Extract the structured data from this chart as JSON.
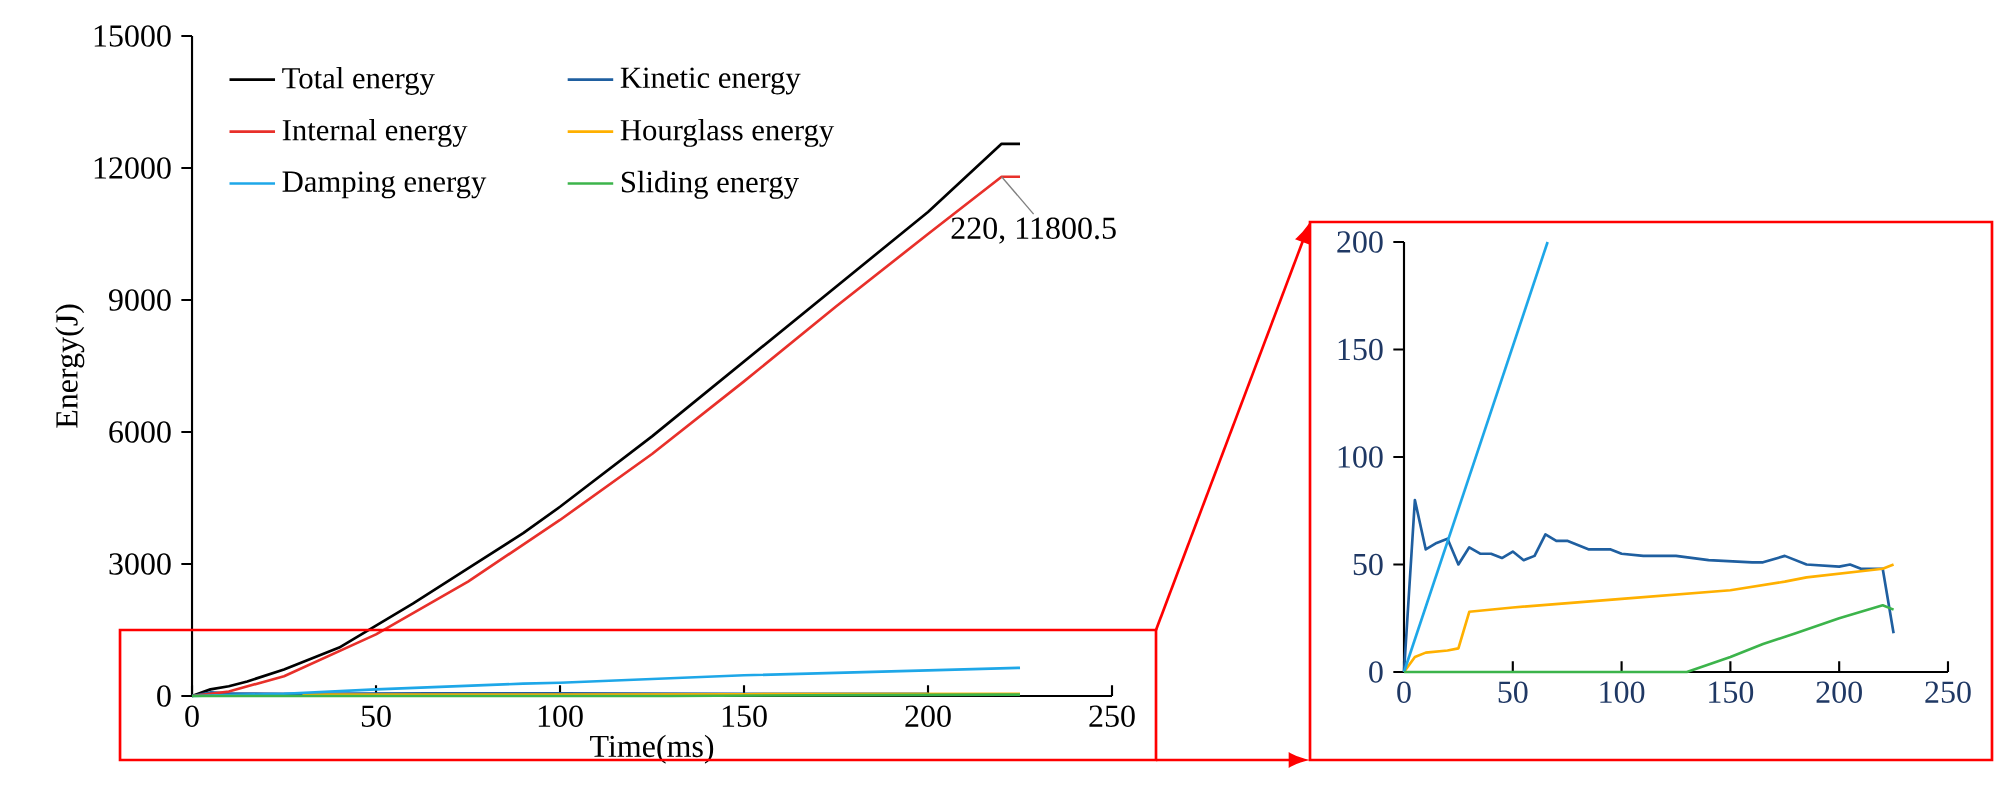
{
  "chart_data": [
    {
      "type": "line",
      "xlabel": "Time(ms)",
      "ylabel": "Energy(J)",
      "xlim": [
        0,
        250
      ],
      "ylim": [
        0,
        15000
      ],
      "xticks": [
        0,
        50,
        100,
        150,
        200,
        250
      ],
      "yticks": [
        0,
        3000,
        6000,
        9000,
        12000,
        15000
      ],
      "legend": "top left",
      "annotations": [
        {
          "text": "220, 11800.5",
          "x": 220,
          "y": 11800.5
        }
      ],
      "series": [
        {
          "name": "Total energy",
          "color": "#000000",
          "x": [
            0,
            5,
            10,
            15,
            25,
            40,
            50,
            60,
            75,
            90,
            100,
            125,
            150,
            175,
            200,
            220,
            225
          ],
          "values": [
            0,
            150,
            220,
            330,
            600,
            1100,
            1600,
            2100,
            2900,
            3700,
            4300,
            5900,
            7600,
            9300,
            11000,
            12550,
            12550
          ]
        },
        {
          "name": "Kinetic energy",
          "color": "#1f5fa0",
          "x": [
            0,
            5,
            10,
            25,
            65,
            100,
            150,
            200
          ],
          "values": [
            0,
            80,
            60,
            50,
            60,
            60,
            50,
            50
          ]
        },
        {
          "name": "Internal energy",
          "color": "#e8302a",
          "x": [
            0,
            10,
            25,
            50,
            75,
            100,
            125,
            150,
            175,
            200,
            220,
            225
          ],
          "values": [
            0,
            100,
            450,
            1400,
            2600,
            4000,
            5500,
            7150,
            8850,
            10500,
            11800.5,
            11800.5
          ]
        },
        {
          "name": "Hourglass energy",
          "color": "#ffb000",
          "x": [
            30,
            100,
            150,
            225
          ],
          "values": [
            30,
            30,
            40,
            50
          ]
        },
        {
          "name": "Damping energy",
          "color": "#1ea7e8",
          "x": [
            0,
            25,
            50,
            90,
            100,
            150,
            200,
            225
          ],
          "values": [
            0,
            50,
            150,
            280,
            300,
            470,
            580,
            640
          ]
        },
        {
          "name": "Sliding energy",
          "color": "#3cb44b",
          "x": [
            0,
            130,
            180,
            220,
            225
          ],
          "values": [
            0,
            0,
            20,
            30,
            30
          ]
        }
      ]
    },
    {
      "type": "line",
      "xlim": [
        0,
        250
      ],
      "ylim": [
        0,
        200
      ],
      "xticks": [
        0,
        50,
        100,
        150,
        200,
        250
      ],
      "yticks": [
        0,
        50,
        100,
        150,
        200
      ],
      "legend": false,
      "series": [
        {
          "color": "#1f5fa0",
          "x": [
            0,
            5,
            10,
            15,
            20,
            25,
            30,
            35,
            40,
            45,
            50,
            55,
            60,
            65,
            70,
            75,
            85,
            95,
            100,
            110,
            120,
            125,
            140,
            160,
            165,
            175,
            185,
            200,
            205,
            210,
            220,
            225
          ],
          "values": [
            0,
            80,
            57,
            60,
            62,
            50,
            58,
            55,
            55,
            53,
            56,
            52,
            54,
            64,
            61,
            61,
            57,
            57,
            55,
            54,
            54,
            54,
            52,
            51,
            51,
            54,
            50,
            49,
            50,
            48,
            48,
            18
          ]
        },
        {
          "color": "#ffb000",
          "x": [
            0,
            5,
            10,
            20,
            25,
            30,
            50,
            100,
            150,
            175,
            185,
            220,
            225
          ],
          "values": [
            0,
            7,
            9,
            10,
            11,
            28,
            30,
            34,
            38,
            42,
            44,
            48,
            50
          ]
        },
        {
          "color": "#1ea7e8",
          "x": [
            0,
            66
          ],
          "values": [
            0,
            200
          ]
        },
        {
          "color": "#3cb44b",
          "x": [
            0,
            130,
            150,
            165,
            180,
            200,
            220,
            225
          ],
          "values": [
            0,
            0,
            7,
            13,
            18,
            25,
            31,
            29
          ]
        }
      ]
    }
  ]
}
